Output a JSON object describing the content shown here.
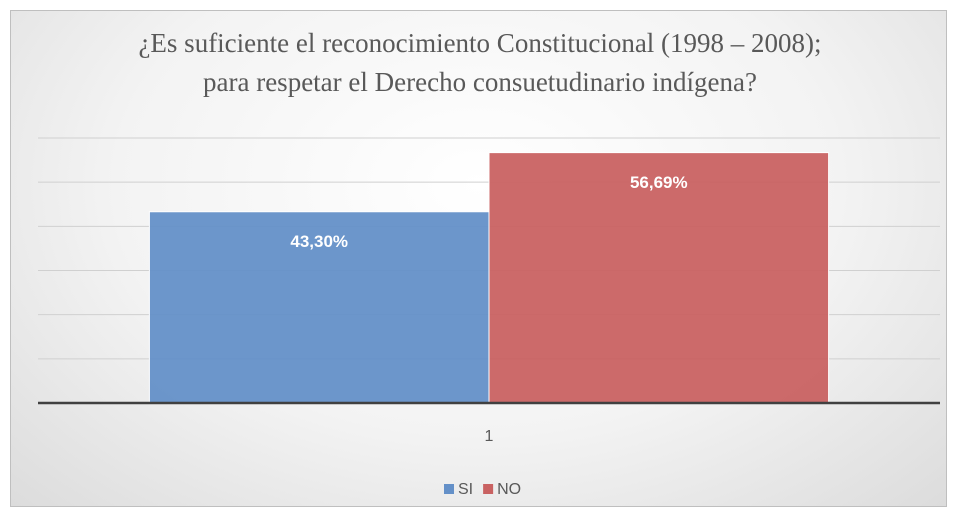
{
  "chart_data": {
    "type": "bar",
    "title": "¿Es suficiente el reconocimiento Constitucional (1998 – 2008); para respetar el Derecho consuetudinario indígena?",
    "categories": [
      "1"
    ],
    "series": [
      {
        "name": "SI",
        "color": "#6490c8",
        "values": [
          43.3
        ],
        "value_labels": [
          "43,30%"
        ]
      },
      {
        "name": "NO",
        "color": "#c96262",
        "values": [
          56.69
        ],
        "value_labels": [
          "56,69%"
        ]
      }
    ],
    "ylim": [
      0,
      60
    ],
    "yticks": [
      0,
      10,
      20,
      30,
      40,
      50,
      60
    ],
    "grid": true,
    "legend": "bottom"
  }
}
